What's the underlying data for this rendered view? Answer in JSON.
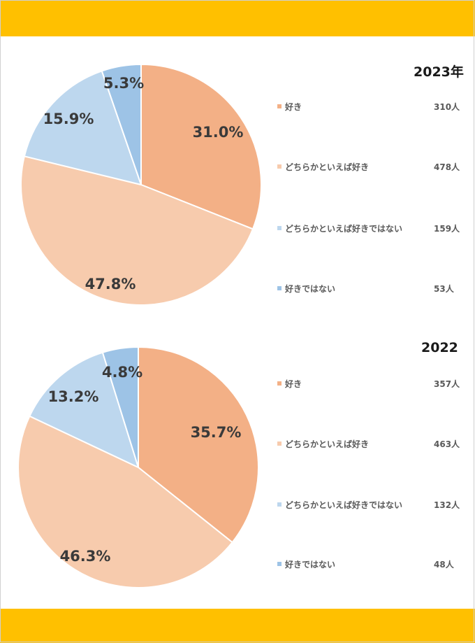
{
  "chart_data": [
    {
      "type": "pie",
      "title": "2023年",
      "categories": [
        "好き",
        "どちらかといえば好き",
        "どちらかといえば好きではない",
        "好きではない"
      ],
      "values": [
        31.0,
        47.8,
        15.9,
        5.3
      ],
      "value_labels": [
        "31.0%",
        "47.8%",
        "15.9%",
        "5.3%"
      ],
      "counts": [
        "310人",
        "478人",
        "159人",
        "53人"
      ],
      "colors": [
        "#f3b086",
        "#f7cbad",
        "#bdd7ee",
        "#9dc3e6"
      ],
      "legend_position": "right"
    },
    {
      "type": "pie",
      "title": "2022",
      "categories": [
        "好き",
        "どちらかといえば好き",
        "どちらかといえば好きではない",
        "好きではない"
      ],
      "values": [
        35.7,
        46.3,
        13.2,
        4.8
      ],
      "value_labels": [
        "35.7%",
        "46.3%",
        "13.2%",
        "4.8%"
      ],
      "counts": [
        "357人",
        "463人",
        "132人",
        "48人"
      ],
      "colors": [
        "#f3b086",
        "#f7cbad",
        "#bdd7ee",
        "#9dc3e6"
      ],
      "legend_position": "right"
    }
  ],
  "colors": {
    "band": "#ffc000"
  }
}
